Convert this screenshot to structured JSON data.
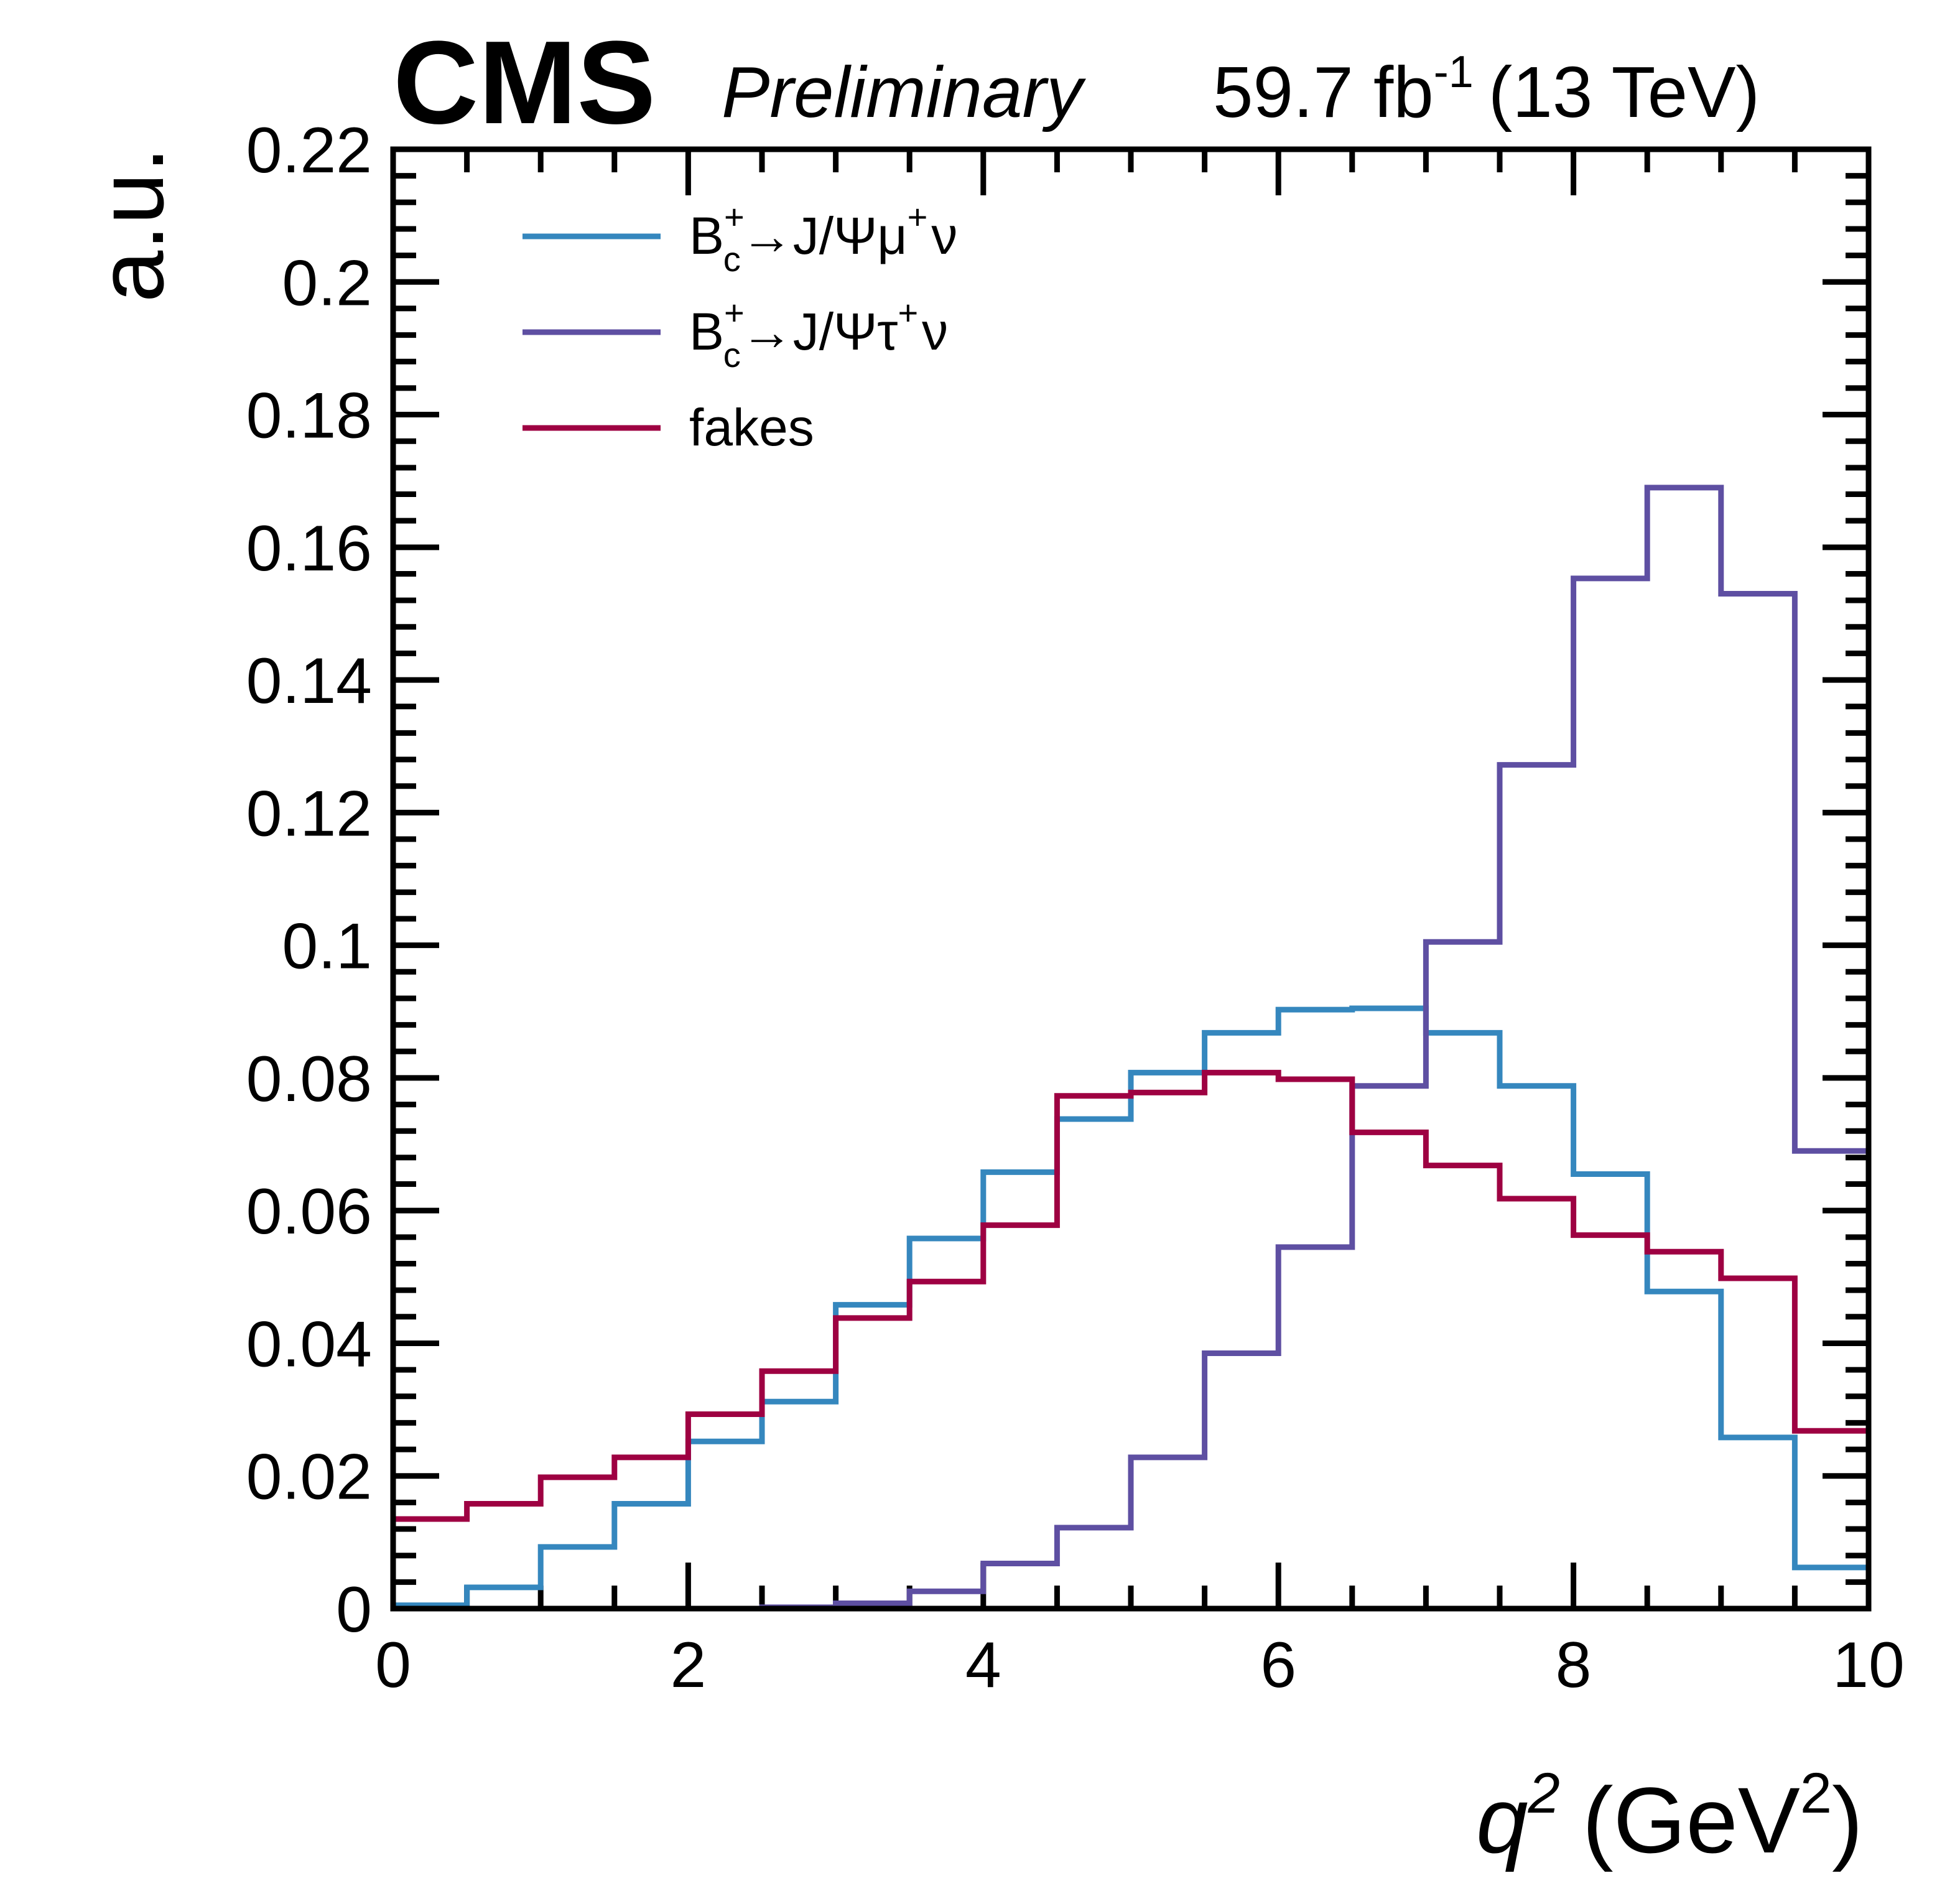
{
  "header": {
    "experiment": "CMS",
    "status": "Preliminary",
    "lumi_value": "59.7 fb",
    "lumi_exp": "-1",
    "energy": "(13 TeV)"
  },
  "axes": {
    "ylabel": "a.u.",
    "xlabel_var": "q",
    "xlabel_var_exp": "2",
    "xlabel_unit_open": "(GeV",
    "xlabel_unit_exp": "2",
    "xlabel_unit_close": ")"
  },
  "legend": {
    "entries": [
      {
        "base": "B",
        "sup": "+",
        "sub": "c",
        "rest": "→J/Ψμ",
        "sup2": "+",
        "tail": "ν",
        "color": "#3587BE"
      },
      {
        "base": "B",
        "sup": "+",
        "sub": "c",
        "rest": "→J/Ψτ",
        "sup2": "+",
        "tail": "ν",
        "color": "#5E4FA2"
      },
      {
        "label": "fakes",
        "color": "#9E0142"
      }
    ]
  },
  "chart_data": {
    "type": "histogram",
    "xlabel": "q2 (GeV2)",
    "ylabel": "a.u.",
    "xlim": [
      0,
      10
    ],
    "ylim": [
      0,
      0.22
    ],
    "x_ticks": [
      "0",
      "2",
      "4",
      "6",
      "8",
      "10"
    ],
    "y_ticks": [
      "0",
      "0.02",
      "0.04",
      "0.06",
      "0.08",
      "0.1",
      "0.12",
      "0.14",
      "0.16",
      "0.18",
      "0.2",
      "0.22"
    ],
    "bin_edges": [
      0,
      0.5,
      1,
      1.5,
      2,
      2.5,
      3,
      3.5,
      4,
      4.5,
      5,
      5.5,
      6,
      6.5,
      7,
      7.5,
      8,
      8.5,
      9,
      9.5,
      10
    ],
    "series": [
      {
        "name": "Bc+→J/Ψμ+ν",
        "color": "#3587BE",
        "values": [
          0.0005,
          0.0032,
          0.0093,
          0.0158,
          0.0252,
          0.0312,
          0.0458,
          0.0558,
          0.0658,
          0.0738,
          0.0808,
          0.0868,
          0.0903,
          0.0905,
          0.0868,
          0.0788,
          0.0655,
          0.0478,
          0.0258,
          0.0062
        ]
      },
      {
        "name": "Bc+→J/Ψτ+ν",
        "color": "#5E4FA2",
        "values": [
          0.0,
          0.0,
          0.0,
          0.0,
          0.0,
          0.0002,
          0.0008,
          0.0026,
          0.0068,
          0.0122,
          0.0228,
          0.0385,
          0.0545,
          0.0788,
          0.1005,
          0.1272,
          0.1553,
          0.169,
          0.153,
          0.069
        ]
      },
      {
        "name": "fakes",
        "color": "#9E0142",
        "values": [
          0.0135,
          0.0158,
          0.0198,
          0.0228,
          0.0293,
          0.0358,
          0.0438,
          0.0493,
          0.0578,
          0.0773,
          0.0778,
          0.0808,
          0.0798,
          0.0718,
          0.0668,
          0.0618,
          0.0563,
          0.0538,
          0.0498,
          0.0268
        ]
      }
    ],
    "legend_position": "top-left",
    "grid": false
  }
}
